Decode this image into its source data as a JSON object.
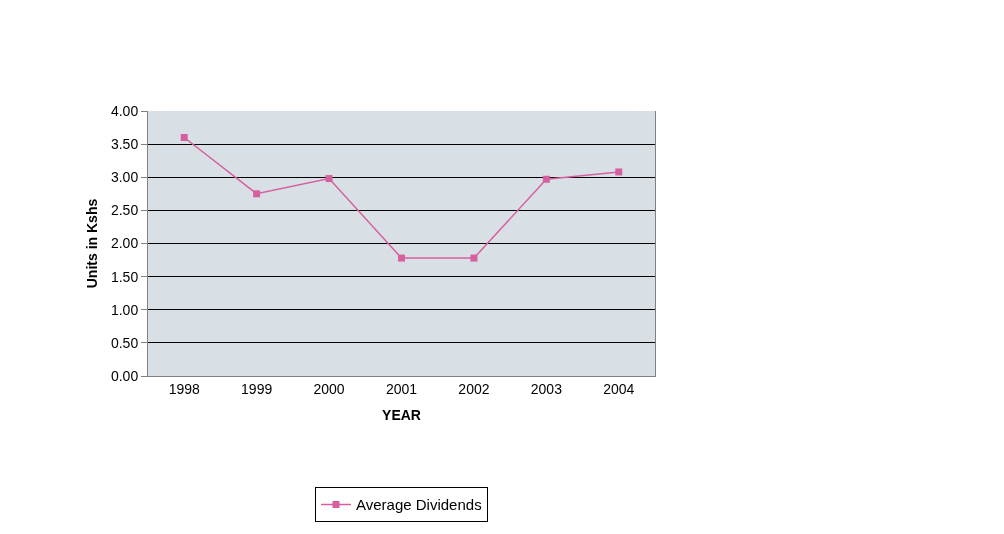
{
  "chart_data": {
    "type": "line",
    "xlabel": "YEAR",
    "ylabel": "Units in Kshs",
    "categories": [
      "1998",
      "1999",
      "2000",
      "2001",
      "2002",
      "2003",
      "2004"
    ],
    "series": [
      {
        "name": "Average Dividends",
        "color": "#d6609f",
        "values": [
          3.6,
          2.75,
          2.98,
          1.78,
          1.78,
          2.97,
          3.08
        ]
      }
    ],
    "ylim": [
      0,
      4
    ],
    "yticks": [
      {
        "value": 0,
        "label": "0.00"
      },
      {
        "value": 0.5,
        "label": "0.50"
      },
      {
        "value": 1,
        "label": "1.00"
      },
      {
        "value": 1.5,
        "label": "1.50"
      },
      {
        "value": 2,
        "label": "2.00"
      },
      {
        "value": 2.5,
        "label": "2.50"
      },
      {
        "value": 3,
        "label": "3.00"
      },
      {
        "value": 3.5,
        "label": "3.50"
      },
      {
        "value": 4,
        "label": "4.00"
      }
    ],
    "grid": "y",
    "legend": "bottom",
    "marker": "square",
    "line_style": "solid"
  }
}
